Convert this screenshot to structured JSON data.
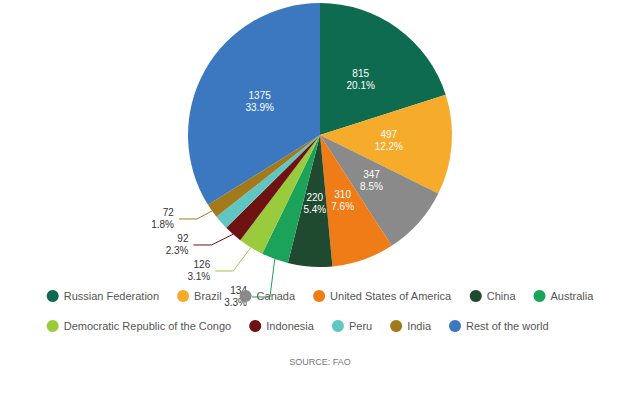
{
  "chart_data": {
    "type": "pie",
    "categories": [
      "Russian Federation",
      "Brazil",
      "Canada",
      "United States of America",
      "China",
      "Australia",
      "Democratic Republic of the Congo",
      "Indonesia",
      "Peru",
      "India",
      "Rest of the world"
    ],
    "values": [
      815,
      497,
      347,
      310,
      220,
      134,
      126,
      92,
      72,
      72,
      1375
    ],
    "value_labels": [
      "815\n20.1%",
      "497\n12.2%",
      "347\n8.5%",
      "310\n7.6%",
      "220\n5.4%",
      "134\n3.3%",
      "126\n3.1%",
      "92\n2.3%",
      null,
      "72\n1.8%",
      "1375\n33.9%"
    ],
    "colors": [
      "#0f6b4f",
      "#f6ab2a",
      "#8a8a8a",
      "#ef7c16",
      "#1f4a30",
      "#1ba35a",
      "#9acb3d",
      "#6e1212",
      "#5fc6c1",
      "#a27a1c",
      "#3b78c0"
    ],
    "data_labels": true,
    "legend": "bottom",
    "source": "SOURCE: FAO"
  }
}
